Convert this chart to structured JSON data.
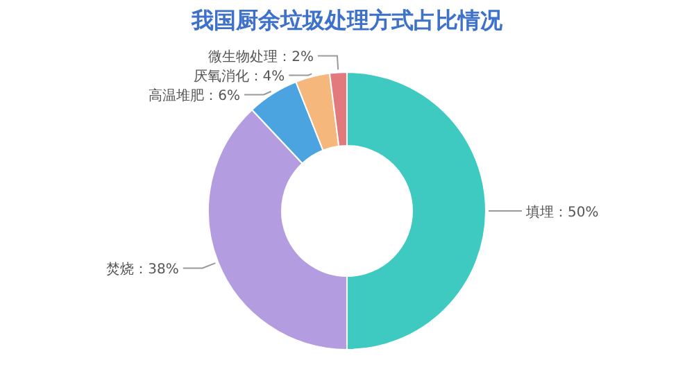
{
  "chart_data": {
    "type": "donut",
    "title": "我国厨余垃圾处理方式占比情况",
    "categories": [
      "填埋",
      "焚烧",
      "高温堆肥",
      "厌氧消化",
      "微生物处理"
    ],
    "values": [
      50,
      38,
      6,
      4,
      2
    ],
    "value_labels": [
      "：50%",
      "：38%",
      "：6%",
      "：4%",
      "：2%"
    ],
    "colors": [
      "#3ec9c1",
      "#b39de0",
      "#4ba4e0",
      "#f6b77c",
      "#e2797d"
    ]
  }
}
